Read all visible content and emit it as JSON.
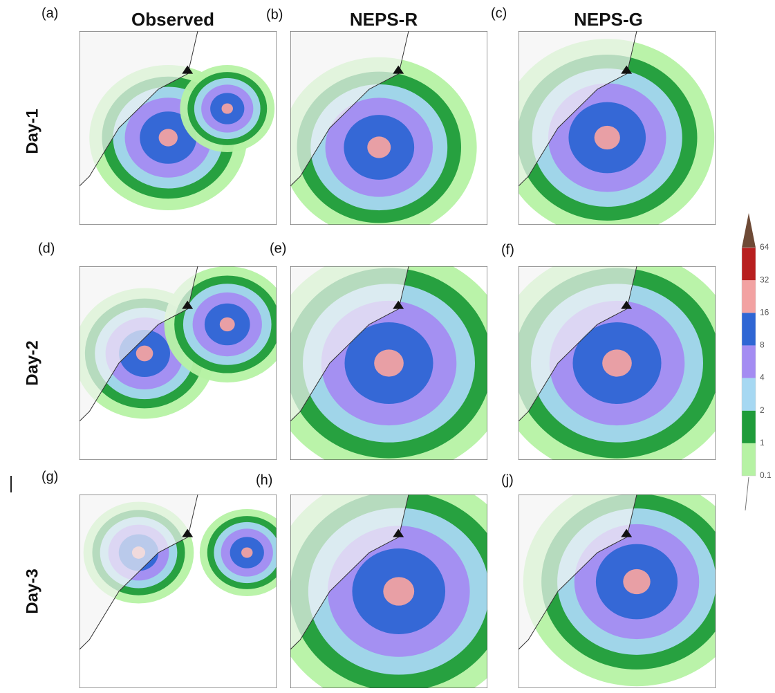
{
  "columns": [
    "Observed",
    "NEPS-R",
    "NEPS-G"
  ],
  "rows": [
    "Day-1",
    "Day-2",
    "Day-3"
  ],
  "panels": [
    [
      "(a)",
      "(b)",
      "(c)"
    ],
    [
      "(d)",
      "(e)",
      "(f)"
    ],
    [
      "(g)",
      "(h)",
      "(j)"
    ]
  ],
  "colorbar": {
    "levels": [
      0.1,
      1,
      2,
      4,
      8,
      16,
      32,
      64
    ],
    "colors": [
      "#b6f2a4",
      "#1f9c3a",
      "#a6d8f2",
      "#a48cf2",
      "#2f66d4",
      "#f2a2a2",
      "#b81f1f",
      "#6e4a36"
    ]
  }
}
